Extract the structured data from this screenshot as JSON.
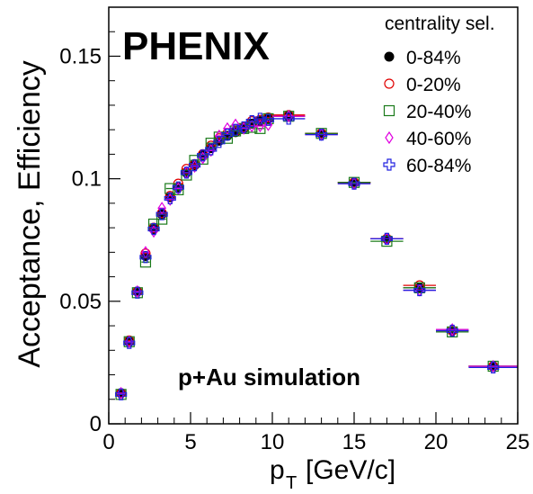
{
  "chart_data": {
    "type": "scatter",
    "title": "",
    "banner": "PHENIX",
    "annotation": "p+Au simulation",
    "xlabel_main": "p",
    "xlabel_sub": "T",
    "xlabel_unit": "[GeV/c]",
    "ylabel": "Acceptance, Efficiency",
    "xlim": [
      0,
      25
    ],
    "ylim": [
      0,
      0.17
    ],
    "x_ticks": [
      0,
      5,
      10,
      15,
      20,
      25
    ],
    "x_tick_labels": [
      "0",
      "5",
      "10",
      "15",
      "20",
      "25"
    ],
    "y_ticks": [
      0,
      0.05,
      0.1,
      0.15
    ],
    "y_tick_labels": [
      "0",
      "0.05",
      "0.1",
      "0.15"
    ],
    "grid": false,
    "legend_title": "centrality sel.",
    "legend_position": "top-right",
    "x": [
      0.75,
      1.25,
      1.75,
      2.25,
      2.75,
      3.25,
      3.75,
      4.25,
      4.75,
      5.25,
      5.75,
      6.25,
      6.75,
      7.25,
      7.75,
      8.25,
      8.75,
      9.25,
      9.75,
      11,
      13,
      15,
      17,
      19,
      21,
      23.5
    ],
    "x_halfwidth": [
      0.25,
      0.25,
      0.25,
      0.25,
      0.25,
      0.25,
      0.25,
      0.25,
      0.25,
      0.25,
      0.25,
      0.25,
      0.25,
      0.25,
      0.25,
      0.25,
      0.25,
      0.25,
      0.25,
      1,
      1,
      1,
      1,
      1,
      1,
      1.5
    ],
    "series": [
      {
        "name": "0-84%",
        "marker": "filled-circle",
        "color": "#000000",
        "values": [
          0.0125,
          0.0335,
          0.054,
          0.0685,
          0.0795,
          0.0855,
          0.0925,
          0.0965,
          0.1025,
          0.1055,
          0.1095,
          0.1125,
          0.1155,
          0.1175,
          0.119,
          0.1205,
          0.1225,
          0.1235,
          0.1245,
          0.1255,
          0.1185,
          0.0985,
          0.0755,
          0.0555,
          0.038,
          0.0235
        ]
      },
      {
        "name": "0-20%",
        "marker": "open-circle",
        "color": "#e00000",
        "values": [
          0.0125,
          0.034,
          0.054,
          0.0695,
          0.08,
          0.086,
          0.093,
          0.098,
          0.104,
          0.106,
          0.11,
          0.1135,
          0.1165,
          0.1185,
          0.1195,
          0.121,
          0.1235,
          0.124,
          0.125,
          0.126,
          0.1185,
          0.0985,
          0.0755,
          0.0565,
          0.038,
          0.0235
        ]
      },
      {
        "name": "20-40%",
        "marker": "open-square",
        "color": "#1a7a1a",
        "values": [
          0.012,
          0.0335,
          0.0535,
          0.066,
          0.0815,
          0.0835,
          0.096,
          0.0955,
          0.1015,
          0.1075,
          0.108,
          0.1145,
          0.117,
          0.1165,
          0.1195,
          0.1205,
          0.121,
          0.1205,
          0.1245,
          0.1255,
          0.1185,
          0.0985,
          0.0745,
          0.0555,
          0.0375,
          0.0235
        ]
      },
      {
        "name": "40-60%",
        "marker": "open-diamond",
        "color": "#e000e0",
        "values": [
          0.0125,
          0.0335,
          0.054,
          0.07,
          0.0785,
          0.088,
          0.0915,
          0.096,
          0.1025,
          0.105,
          0.1085,
          0.1115,
          0.1175,
          0.1205,
          0.122,
          0.1205,
          0.1215,
          0.1215,
          0.122,
          0.1255,
          0.118,
          0.098,
          0.0755,
          0.0545,
          0.0385,
          0.0235
        ]
      },
      {
        "name": "60-84%",
        "marker": "open-cross",
        "color": "#2020e0",
        "values": [
          0.012,
          0.033,
          0.0535,
          0.068,
          0.0795,
          0.0855,
          0.092,
          0.0965,
          0.1025,
          0.1055,
          0.1095,
          0.112,
          0.115,
          0.118,
          0.12,
          0.121,
          0.1235,
          0.1245,
          0.124,
          0.1245,
          0.118,
          0.098,
          0.0755,
          0.0545,
          0.038,
          0.023
        ]
      }
    ]
  }
}
